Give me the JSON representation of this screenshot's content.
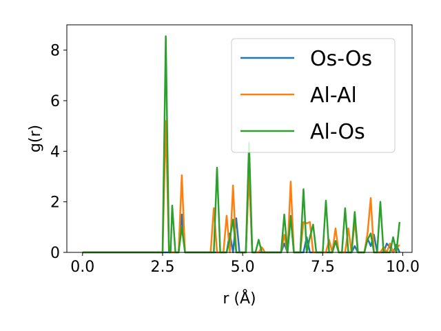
{
  "chart_data": {
    "type": "line",
    "title": "",
    "xlabel": "r (Å)",
    "ylabel": "g(r)",
    "xlim": [
      -0.49,
      10.29
    ],
    "ylim": [
      0,
      9.0
    ],
    "xticks": [
      "0.0",
      "2.5",
      "5.0",
      "7.5",
      "10.0"
    ],
    "yticks": [
      "0",
      "2",
      "4",
      "6",
      "8"
    ],
    "grid": false,
    "legend_position": "upper right",
    "series": [
      {
        "name": "Os-Os",
        "color": "#1f77b4",
        "points": [
          [
            0,
            0
          ],
          [
            2.5,
            0
          ],
          [
            2.6,
            0
          ],
          [
            2.7,
            0
          ],
          [
            3.0,
            0
          ],
          [
            3.1,
            1.5
          ],
          [
            3.2,
            0
          ],
          [
            4.5,
            0
          ],
          [
            4.6,
            0.75
          ],
          [
            4.7,
            0
          ],
          [
            4.8,
            1.35
          ],
          [
            4.9,
            0
          ],
          [
            5.1,
            0
          ],
          [
            5.2,
            3.35
          ],
          [
            5.3,
            0
          ],
          [
            6.2,
            0
          ],
          [
            6.3,
            0.35
          ],
          [
            6.4,
            0
          ],
          [
            6.5,
            1.45
          ],
          [
            6.6,
            0
          ],
          [
            6.9,
            0
          ],
          [
            7.0,
            0.6
          ],
          [
            7.1,
            0
          ],
          [
            7.8,
            0
          ],
          [
            7.9,
            0.45
          ],
          [
            8.0,
            0
          ],
          [
            8.4,
            0
          ],
          [
            8.5,
            0.25
          ],
          [
            8.6,
            0
          ],
          [
            8.8,
            0
          ],
          [
            8.9,
            0.55
          ],
          [
            9.0,
            0.25
          ],
          [
            9.1,
            0.7
          ],
          [
            9.2,
            0
          ],
          [
            9.4,
            0
          ],
          [
            9.5,
            0.35
          ],
          [
            9.6,
            0.2
          ],
          [
            9.7,
            0
          ],
          [
            9.8,
            0.3
          ],
          [
            9.9,
            0
          ]
        ]
      },
      {
        "name": "Al-Al",
        "color": "#ff7f0e",
        "points": [
          [
            0,
            0
          ],
          [
            2.5,
            0
          ],
          [
            2.6,
            5.2
          ],
          [
            2.7,
            0
          ],
          [
            3.0,
            0
          ],
          [
            3.1,
            3.05
          ],
          [
            3.2,
            0
          ],
          [
            4.0,
            0
          ],
          [
            4.1,
            1.75
          ],
          [
            4.2,
            0
          ],
          [
            4.4,
            0
          ],
          [
            4.5,
            1.45
          ],
          [
            4.6,
            0
          ],
          [
            4.7,
            2.65
          ],
          [
            4.8,
            0
          ],
          [
            5.1,
            0
          ],
          [
            5.2,
            3.15
          ],
          [
            5.3,
            0
          ],
          [
            5.5,
            0
          ],
          [
            5.6,
            0.2
          ],
          [
            5.7,
            0
          ],
          [
            6.2,
            0
          ],
          [
            6.3,
            0.7
          ],
          [
            6.4,
            0
          ],
          [
            6.5,
            2.8
          ],
          [
            6.6,
            0
          ],
          [
            6.8,
            0
          ],
          [
            6.9,
            1.2
          ],
          [
            7.0,
            1.15
          ],
          [
            7.1,
            1.2
          ],
          [
            7.2,
            0
          ],
          [
            7.6,
            0
          ],
          [
            7.7,
            0.5
          ],
          [
            7.8,
            0
          ],
          [
            7.9,
            0.95
          ],
          [
            8.0,
            0
          ],
          [
            8.2,
            0
          ],
          [
            8.3,
            0.95
          ],
          [
            8.4,
            0
          ],
          [
            8.5,
            1.25
          ],
          [
            8.6,
            0
          ],
          [
            8.8,
            0
          ],
          [
            8.9,
            0.75
          ],
          [
            9.0,
            2.15
          ],
          [
            9.1,
            0
          ],
          [
            9.3,
            0
          ],
          [
            9.4,
            0.2
          ],
          [
            9.5,
            0
          ],
          [
            9.6,
            0.35
          ],
          [
            9.7,
            0
          ],
          [
            9.9,
            0.3
          ]
        ]
      },
      {
        "name": "Al-Os",
        "color": "#2ca02c",
        "points": [
          [
            0,
            0
          ],
          [
            2.4,
            0
          ],
          [
            2.5,
            0
          ],
          [
            2.6,
            8.55
          ],
          [
            2.7,
            0
          ],
          [
            2.75,
            0
          ],
          [
            2.8,
            1.85
          ],
          [
            2.9,
            0
          ],
          [
            3.0,
            0
          ],
          [
            3.1,
            1.0
          ],
          [
            3.2,
            0
          ],
          [
            4.1,
            0
          ],
          [
            4.2,
            3.35
          ],
          [
            4.3,
            0
          ],
          [
            4.5,
            0
          ],
          [
            4.6,
            0.55
          ],
          [
            4.7,
            1.3
          ],
          [
            4.8,
            0
          ],
          [
            5.1,
            0
          ],
          [
            5.2,
            4.35
          ],
          [
            5.3,
            0
          ],
          [
            5.4,
            0
          ],
          [
            5.5,
            0.5
          ],
          [
            5.6,
            0
          ],
          [
            6.2,
            0
          ],
          [
            6.3,
            1.5
          ],
          [
            6.4,
            0
          ],
          [
            6.5,
            1.4
          ],
          [
            6.6,
            0
          ],
          [
            6.8,
            0
          ],
          [
            6.9,
            2.5
          ],
          [
            7.0,
            0
          ],
          [
            7.1,
            0.6
          ],
          [
            7.2,
            1.1
          ],
          [
            7.3,
            0
          ],
          [
            7.5,
            0
          ],
          [
            7.6,
            2.05
          ],
          [
            7.7,
            0
          ],
          [
            7.8,
            0
          ],
          [
            7.9,
            0.45
          ],
          [
            8.0,
            0
          ],
          [
            8.1,
            0
          ],
          [
            8.2,
            1.75
          ],
          [
            8.3,
            0
          ],
          [
            8.4,
            0
          ],
          [
            8.5,
            1.6
          ],
          [
            8.6,
            0
          ],
          [
            8.8,
            0
          ],
          [
            8.9,
            0.5
          ],
          [
            9.0,
            0.75
          ],
          [
            9.1,
            0
          ],
          [
            9.2,
            0
          ],
          [
            9.3,
            2.0
          ],
          [
            9.4,
            0
          ],
          [
            9.6,
            0
          ],
          [
            9.7,
            0.6
          ],
          [
            9.8,
            0
          ],
          [
            9.9,
            1.2
          ]
        ]
      }
    ]
  }
}
